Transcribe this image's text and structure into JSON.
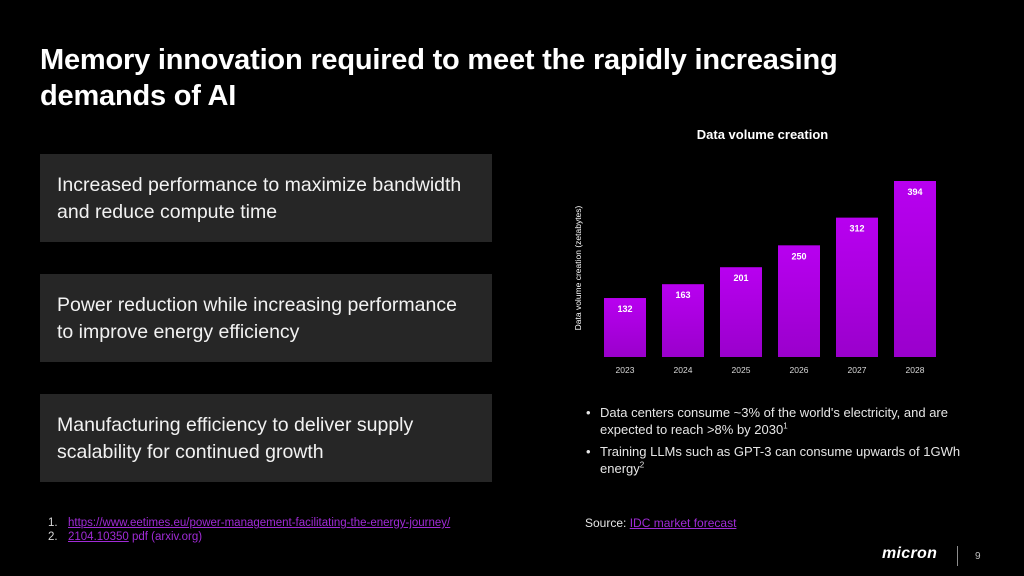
{
  "slide": {
    "title": "Memory innovation required to meet the rapidly increasing demands of AI",
    "cards": [
      "Increased performance to maximize bandwidth and reduce compute time",
      "Power reduction while increasing performance to improve energy efficiency",
      "Manufacturing efficiency to deliver supply scalability for continued growth"
    ],
    "bullets": [
      {
        "text": "Data centers consume ~3% of the world's electricity, and are expected to reach >8% by 2030",
        "sup": "1"
      },
      {
        "text": "Training LLMs such as GPT-3 can consume upwards of 1GWh energy",
        "sup": "2"
      }
    ],
    "source_label": "Source: ",
    "source_link": "IDC market forecast",
    "references": [
      {
        "num": "1.",
        "link": "https://www.eetimes.eu/power-management-facilitating-the-energy-journey/",
        "rest": ""
      },
      {
        "num": "2.",
        "link": "2104.10350",
        "rest": " pdf (arxiv.org)"
      }
    ],
    "logo": "micron",
    "page_number": "9",
    "accent_color": "#a02bd6"
  },
  "chart_data": {
    "type": "bar",
    "title": "Data volume creation",
    "xlabel": "",
    "ylabel": "Data volume creation (zetabytes)",
    "categories": [
      "2023",
      "2024",
      "2025",
      "2026",
      "2027",
      "2028"
    ],
    "values": [
      132,
      163,
      201,
      250,
      312,
      394
    ],
    "ylim": [
      0,
      394
    ],
    "grid": false,
    "data_labels": true,
    "bar_color_top": "#b800f0",
    "bar_color_bottom": "#9a00cc"
  }
}
